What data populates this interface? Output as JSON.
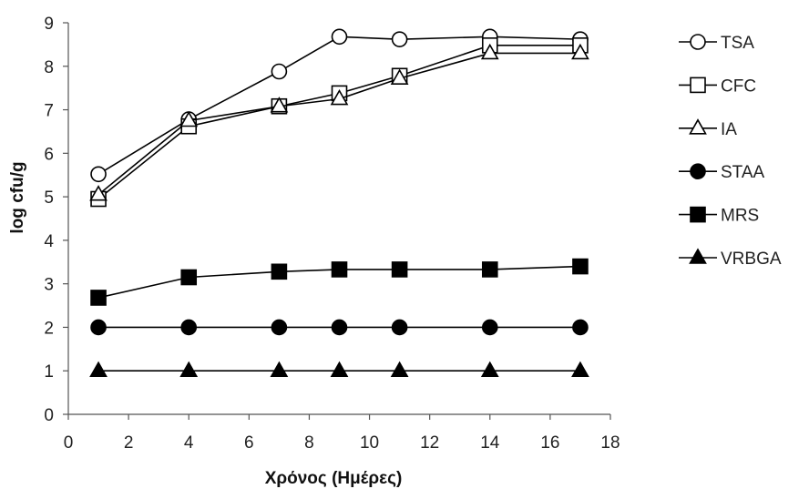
{
  "chart_data": {
    "type": "line",
    "title": "",
    "xlabel": "Χρόνος (Ημέρες)",
    "ylabel": "log cfu/g",
    "xlim": [
      0,
      18
    ],
    "ylim": [
      0,
      9
    ],
    "xticks": [
      0,
      2,
      4,
      6,
      8,
      10,
      12,
      14,
      16,
      18
    ],
    "yticks": [
      0,
      1,
      2,
      3,
      4,
      5,
      6,
      7,
      8,
      9
    ],
    "grid": false,
    "legend_position": "right",
    "x": [
      1,
      4,
      7,
      9,
      11,
      14,
      17
    ],
    "series": [
      {
        "name": "TSA",
        "marker": "circle",
        "filled": false,
        "values": [
          5.52,
          6.78,
          7.88,
          8.68,
          8.62,
          8.68,
          8.62
        ]
      },
      {
        "name": "CFC",
        "marker": "square",
        "filled": false,
        "values": [
          4.95,
          6.62,
          7.08,
          7.38,
          7.78,
          8.48,
          8.48
        ]
      },
      {
        "name": "IA",
        "marker": "triangle",
        "filled": false,
        "values": [
          5.05,
          6.75,
          7.08,
          7.25,
          7.72,
          8.3,
          8.3
        ]
      },
      {
        "name": "STAA",
        "marker": "circle",
        "filled": true,
        "values": [
          2.0,
          2.0,
          2.0,
          2.0,
          2.0,
          2.0,
          2.0
        ]
      },
      {
        "name": "MRS",
        "marker": "square",
        "filled": true,
        "values": [
          2.68,
          3.15,
          3.28,
          3.33,
          3.33,
          3.33,
          3.4
        ]
      },
      {
        "name": "VRBGA",
        "marker": "triangle",
        "filled": true,
        "values": [
          1.0,
          1.0,
          1.0,
          1.0,
          1.0,
          1.0,
          1.0
        ]
      }
    ]
  }
}
